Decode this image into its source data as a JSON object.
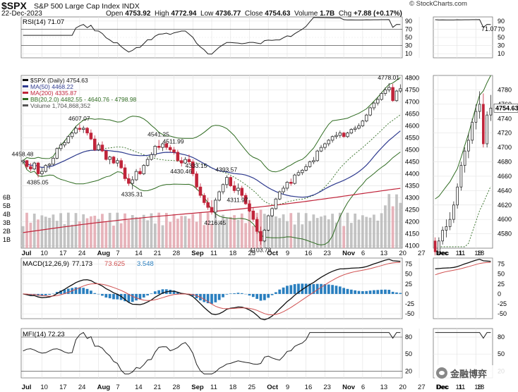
{
  "header": {
    "symbol": "$SPX",
    "name": "S&P 500 Large Cap Index INDX",
    "date": "22-Dec-2023",
    "open_label": "Open",
    "open": "4753.92",
    "high_label": "High",
    "high": "4772.94",
    "low_label": "Low",
    "low": "4736.77",
    "close_label": "Close",
    "close": "4754.63",
    "volume_label": "Volume",
    "volume": "1.7B",
    "chg_label": "Chg",
    "chg": "+7.88 (+0.17%)",
    "copyright": "© StockCharts.com"
  },
  "colors": {
    "up": "#2a2a2a",
    "down": "#c0243a",
    "ma50": "#2f3b8f",
    "ma200": "#c0243a",
    "bb": "#2e6b20",
    "volume": "#b8b8b8",
    "macd_hist": "#2a7fbf",
    "rsi_fill": "#3a8a2a",
    "grid": "#e4e4e4"
  },
  "legend": {
    "price": "$SPX (Daily) 4754.63",
    "ma50": "MA(50) 4468.22",
    "ma200": "MA(200) 4335.87",
    "bb": "BB(20,2.0) 4482.55 - 4640.76 - 4798.98",
    "volume": "Volume 1,704,868,352",
    "rsi": "RSI(14) 71.07",
    "macd_name": "MACD(12,26,9)",
    "macd_v1": "77.173",
    "macd_v2": "73.625",
    "macd_v3": "3.548",
    "mfi": "MFI(14) 72.23"
  },
  "chart_data": {
    "type": "candlestick",
    "x_labels": [
      "Jul",
      "10",
      "17",
      "24",
      "Aug",
      "7",
      "14",
      "21",
      "28",
      "Sep",
      "11",
      "18",
      "25",
      "Oct",
      "9",
      "16",
      "23",
      "Nov",
      "6",
      "13",
      "20",
      "27",
      "Dec",
      "11",
      "18"
    ],
    "x_label_idx": [
      0,
      5,
      10,
      15,
      20,
      25,
      30,
      35,
      40,
      45,
      50,
      55,
      60,
      65,
      70,
      75,
      80,
      85,
      90,
      95,
      100,
      105,
      110,
      115,
      120
    ],
    "price_ticks": [
      4100,
      4150,
      4200,
      4250,
      4300,
      4350,
      4400,
      4450,
      4500,
      4550,
      4600,
      4650,
      4700,
      4750,
      4800
    ],
    "volume_ticks": [
      "1B",
      "2B",
      "3B",
      "4B",
      "5B",
      "6B"
    ],
    "rsi_ticks": [
      10,
      30,
      50,
      70,
      90
    ],
    "macd_ticks": [
      -50,
      -25,
      0,
      25,
      50,
      75
    ],
    "mfi_ticks": [
      20,
      50,
      80
    ],
    "annotations": [
      "4458.48",
      "4385.05",
      "4607.07",
      "4335.31",
      "4541.25",
      "4430.46",
      "4511.99",
      "4333.15",
      "4216.45",
      "4393.57",
      "4311.97",
      "4103.78",
      "4778.01"
    ],
    "ohlc": [
      [
        4450,
        4458.48,
        4440,
        4455
      ],
      [
        4455,
        4458,
        4420,
        4430
      ],
      [
        4430,
        4445,
        4410,
        4420
      ],
      [
        4420,
        4450,
        4415,
        4445
      ],
      [
        4445,
        4450,
        4385.05,
        4400
      ],
      [
        4400,
        4425,
        4390,
        4410
      ],
      [
        4410,
        4440,
        4405,
        4435
      ],
      [
        4435,
        4445,
        4420,
        4440
      ],
      [
        4440,
        4470,
        4435,
        4465
      ],
      [
        4465,
        4510,
        4460,
        4505
      ],
      [
        4505,
        4530,
        4495,
        4520
      ],
      [
        4520,
        4540,
        4510,
        4530
      ],
      [
        4530,
        4560,
        4525,
        4555
      ],
      [
        4555,
        4575,
        4545,
        4570
      ],
      [
        4570,
        4600,
        4565,
        4590
      ],
      [
        4590,
        4607.07,
        4575,
        4585
      ],
      [
        4585,
        4600,
        4570,
        4590
      ],
      [
        4590,
        4595,
        4560,
        4570
      ],
      [
        4570,
        4585,
        4540,
        4545
      ],
      [
        4545,
        4560,
        4495,
        4500
      ],
      [
        4500,
        4530,
        4495,
        4520
      ],
      [
        4520,
        4535,
        4490,
        4495
      ],
      [
        4495,
        4500,
        4455,
        4460
      ],
      [
        4460,
        4475,
        4440,
        4470
      ],
      [
        4470,
        4475,
        4440,
        4445
      ],
      [
        4445,
        4465,
        4430,
        4455
      ],
      [
        4455,
        4465,
        4420,
        4425
      ],
      [
        4425,
        4440,
        4370,
        4380
      ],
      [
        4380,
        4400,
        4350,
        4360
      ],
      [
        4360,
        4390,
        4335.31,
        4375
      ],
      [
        4375,
        4420,
        4370,
        4410
      ],
      [
        4410,
        4425,
        4395,
        4400
      ],
      [
        4400,
        4440,
        4395,
        4435
      ],
      [
        4435,
        4470,
        4430,
        4460
      ],
      [
        4460,
        4490,
        4455,
        4480
      ],
      [
        4480,
        4520,
        4470,
        4515
      ],
      [
        4515,
        4541.25,
        4500,
        4510
      ],
      [
        4510,
        4530,
        4495,
        4525
      ],
      [
        4525,
        4535,
        4500,
        4510
      ],
      [
        4510,
        4520,
        4490,
        4500
      ],
      [
        4500,
        4511.99,
        4480,
        4490
      ],
      [
        4490,
        4500,
        4450,
        4455
      ],
      [
        4455,
        4470,
        4430.46,
        4445
      ],
      [
        4445,
        4470,
        4440,
        4460
      ],
      [
        4460,
        4480,
        4440,
        4450
      ],
      [
        4450,
        4460,
        4390,
        4400
      ],
      [
        4400,
        4410,
        4333.15,
        4345
      ],
      [
        4345,
        4360,
        4300,
        4310
      ],
      [
        4310,
        4320,
        4270,
        4280
      ],
      [
        4280,
        4300,
        4250,
        4260
      ],
      [
        4260,
        4290,
        4230,
        4240
      ],
      [
        4240,
        4300,
        4216.45,
        4290
      ],
      [
        4290,
        4330,
        4285,
        4325
      ],
      [
        4325,
        4360,
        4315,
        4355
      ],
      [
        4355,
        4393.57,
        4340,
        4385
      ],
      [
        4385,
        4390,
        4345,
        4350
      ],
      [
        4350,
        4370,
        4320,
        4330
      ],
      [
        4330,
        4360,
        4311.97,
        4340
      ],
      [
        4340,
        4350,
        4300,
        4310
      ],
      [
        4310,
        4320,
        4270,
        4275
      ],
      [
        4275,
        4290,
        4240,
        4245
      ],
      [
        4245,
        4260,
        4200,
        4210
      ],
      [
        4210,
        4220,
        4150,
        4160
      ],
      [
        4160,
        4180,
        4103.78,
        4120
      ],
      [
        4120,
        4170,
        4115,
        4165
      ],
      [
        4165,
        4230,
        4160,
        4225
      ],
      [
        4225,
        4260,
        4220,
        4255
      ],
      [
        4255,
        4300,
        4250,
        4295
      ],
      [
        4295,
        4330,
        4290,
        4325
      ],
      [
        4325,
        4350,
        4315,
        4340
      ],
      [
        4340,
        4370,
        4330,
        4365
      ],
      [
        4365,
        4380,
        4350,
        4360
      ],
      [
        4360,
        4400,
        4355,
        4395
      ],
      [
        4395,
        4415,
        4390,
        4405
      ],
      [
        4405,
        4420,
        4395,
        4415
      ],
      [
        4415,
        4440,
        4410,
        4430
      ],
      [
        4430,
        4455,
        4425,
        4450
      ],
      [
        4450,
        4470,
        4440,
        4455
      ],
      [
        4455,
        4500,
        4450,
        4495
      ],
      [
        4495,
        4520,
        4490,
        4510
      ],
      [
        4510,
        4530,
        4500,
        4525
      ],
      [
        4525,
        4545,
        4515,
        4540
      ],
      [
        4540,
        4560,
        4530,
        4555
      ],
      [
        4555,
        4575,
        4545,
        4560
      ],
      [
        4560,
        4580,
        4550,
        4570
      ],
      [
        4570,
        4575,
        4550,
        4555
      ],
      [
        4555,
        4575,
        4550,
        4570
      ],
      [
        4570,
        4590,
        4565,
        4585
      ],
      [
        4585,
        4600,
        4575,
        4590
      ],
      [
        4590,
        4610,
        4585,
        4600
      ],
      [
        4600,
        4625,
        4595,
        4620
      ],
      [
        4620,
        4650,
        4615,
        4645
      ],
      [
        4645,
        4680,
        4640,
        4675
      ],
      [
        4675,
        4700,
        4665,
        4695
      ],
      [
        4695,
        4720,
        4685,
        4710
      ],
      [
        4710,
        4740,
        4705,
        4735
      ],
      [
        4735,
        4760,
        4725,
        4750
      ],
      [
        4750,
        4778.01,
        4740,
        4760
      ],
      [
        4760,
        4775,
        4700,
        4705
      ],
      [
        4705,
        4750,
        4700,
        4745
      ],
      [
        4745,
        4772.94,
        4736.77,
        4754.63
      ]
    ]
  }
}
